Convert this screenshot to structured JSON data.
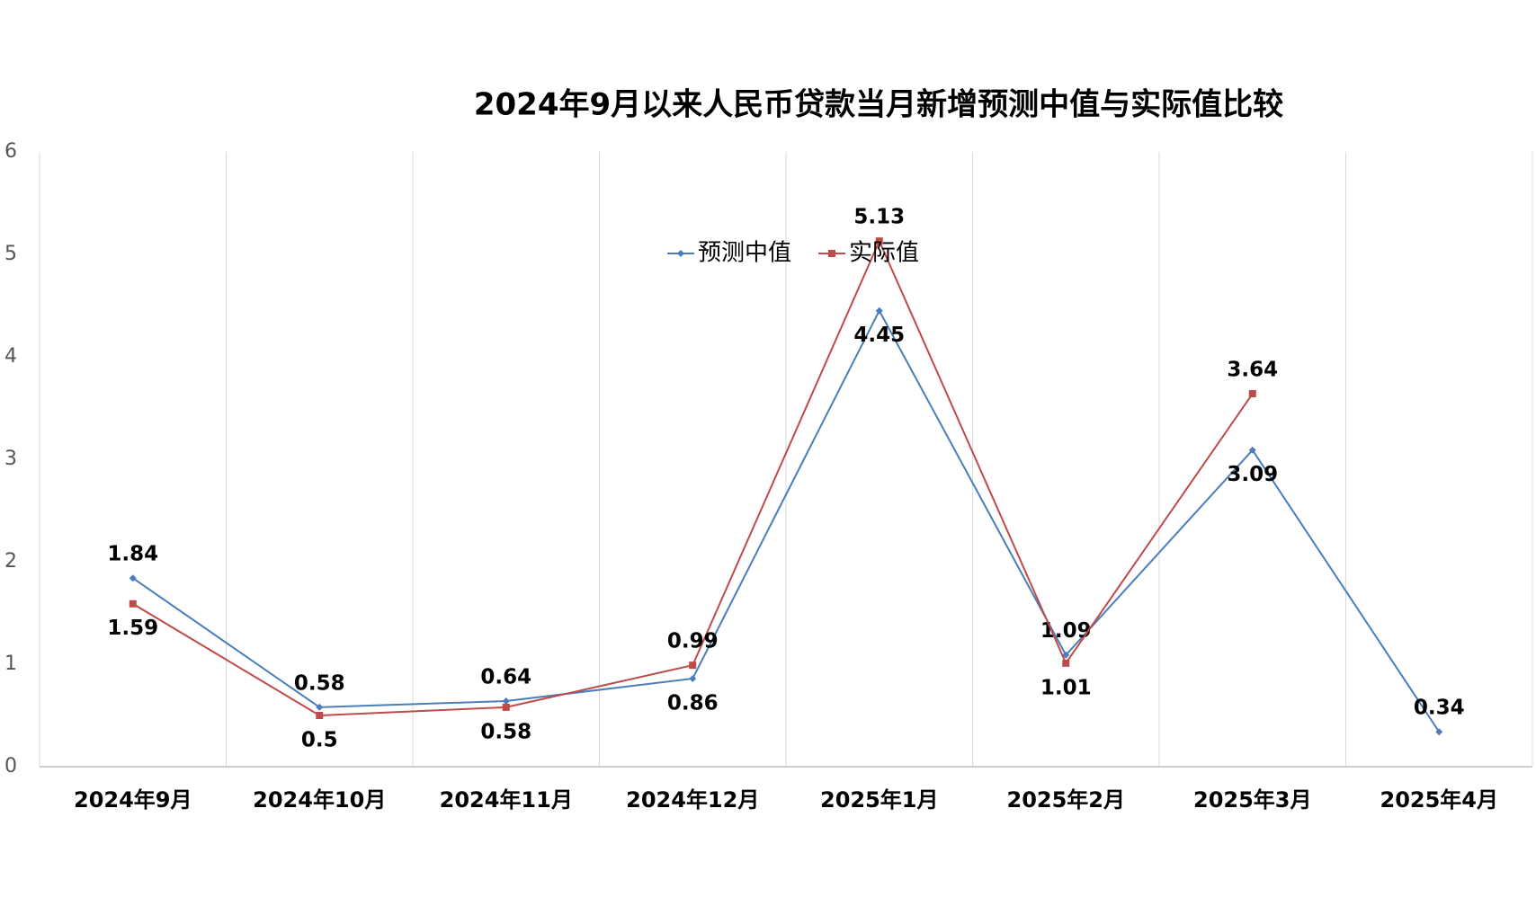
{
  "chart_data": {
    "type": "line",
    "title": "2024年9月以来人民币贷款当月新增预测中值与实际值比较",
    "categories": [
      "2024年9月",
      "2024年10月",
      "2024年11月",
      "2024年12月",
      "2025年1月",
      "2025年2月",
      "2025年3月",
      "2025年4月"
    ],
    "series": [
      {
        "name": "预测中值",
        "color": "#4a7ebb",
        "values": [
          1.84,
          0.58,
          0.64,
          0.86,
          4.45,
          1.09,
          3.09,
          0.34
        ]
      },
      {
        "name": "实际值",
        "color": "#be4b48",
        "values": [
          1.59,
          0.5,
          0.58,
          0.99,
          5.13,
          1.01,
          3.64,
          null
        ]
      }
    ],
    "ylim": [
      0,
      6
    ],
    "yticks": [
      0,
      1,
      2,
      3,
      4,
      5,
      6
    ],
    "category_grid": true,
    "legend": "top"
  }
}
